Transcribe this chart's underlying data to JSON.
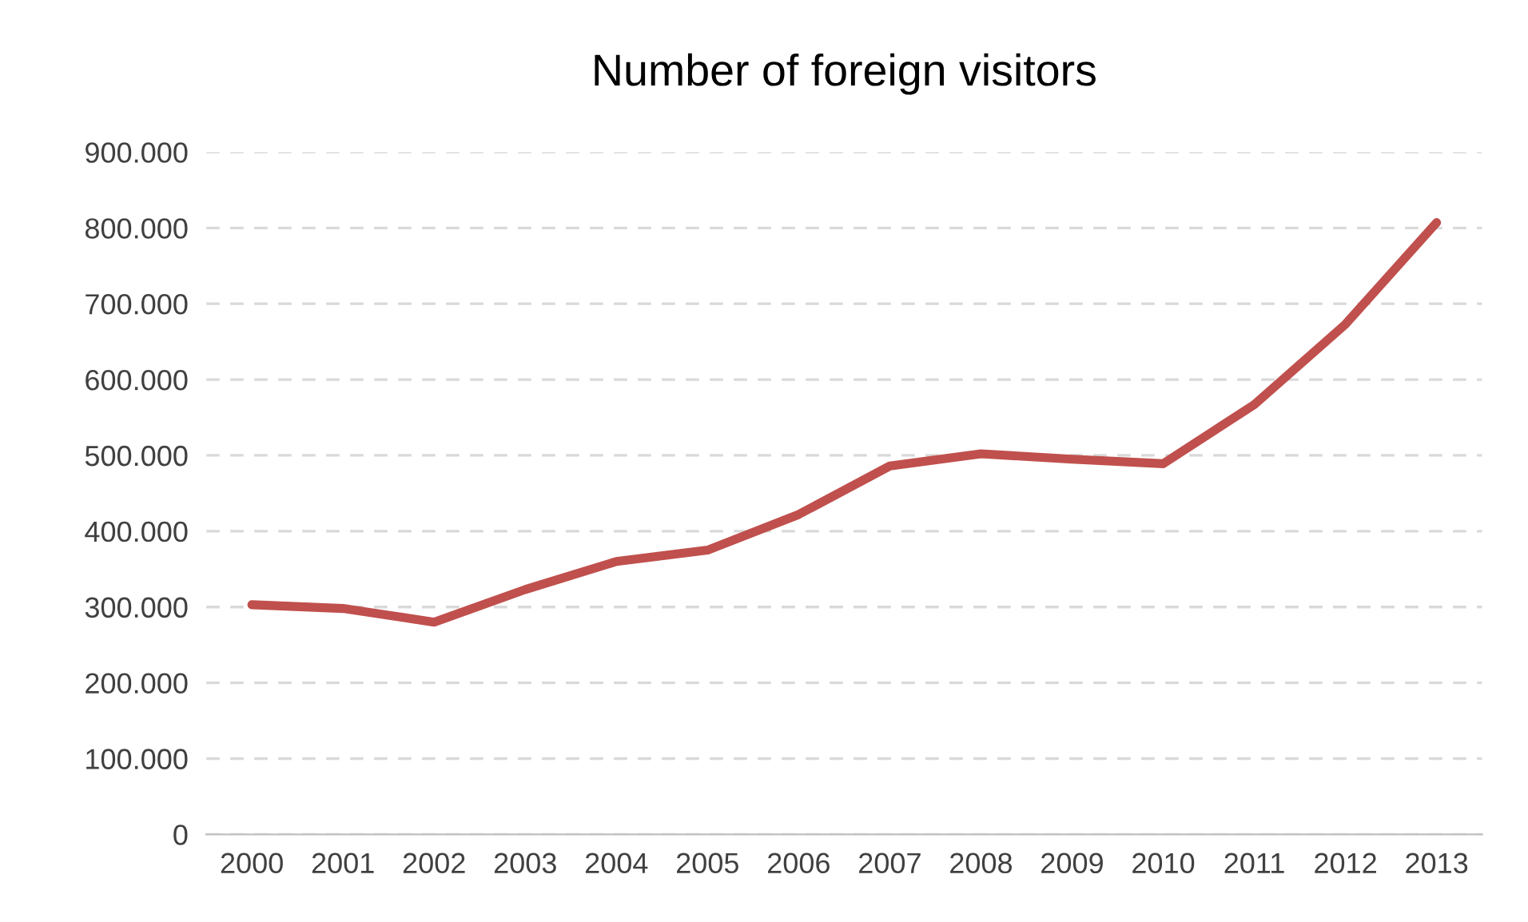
{
  "chart_data": {
    "type": "line",
    "title": "Number of foreign visitors",
    "categories": [
      "2000",
      "2001",
      "2002",
      "2003",
      "2004",
      "2005",
      "2006",
      "2007",
      "2008",
      "2009",
      "2010",
      "2011",
      "2012",
      "2013"
    ],
    "series": [
      {
        "color": "#c0504d",
        "values": [
          303000,
          298000,
          280000,
          323000,
          360000,
          375000,
          422000,
          486000,
          502000,
          495000,
          489000,
          567000,
          673000,
          807000
        ]
      }
    ],
    "ylim": [
      0,
      900000
    ],
    "yticks": [
      0,
      {
        "value": 100000,
        "label": "100.000"
      },
      {
        "value": 200000,
        "label": "200.000"
      },
      {
        "value": 300000,
        "label": "300.000"
      },
      {
        "value": 400000,
        "label": "400.000"
      },
      {
        "value": 500000,
        "label": "500.000"
      },
      {
        "value": 600000,
        "label": "600.000"
      },
      {
        "value": 700000,
        "label": "700.000"
      },
      {
        "value": 800000,
        "label": "800.000"
      },
      {
        "value": 900000,
        "label": "900.000"
      }
    ],
    "grid": "y",
    "line_style": "solid",
    "marker": "none",
    "legend": false
  }
}
